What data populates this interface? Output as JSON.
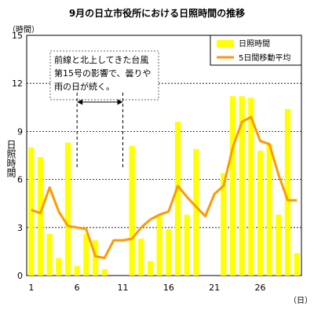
{
  "chart_data": {
    "type": "bar",
    "title": "9月の日立市役所における日照時間の推移",
    "ylabel_unit": "（時間）",
    "ylabel": "日照時間",
    "xlabel_unit": "（日）",
    "ylim": [
      0,
      15
    ],
    "yticks": [
      0,
      3,
      6,
      9,
      12,
      15
    ],
    "xtick_days": [
      1,
      6,
      11,
      16,
      21,
      26
    ],
    "x": [
      1,
      2,
      3,
      4,
      5,
      6,
      7,
      8,
      9,
      10,
      11,
      12,
      13,
      14,
      15,
      16,
      17,
      18,
      19,
      20,
      21,
      22,
      23,
      24,
      25,
      26,
      27,
      28,
      29,
      30
    ],
    "series": [
      {
        "name": "日照時間",
        "type": "bar",
        "color": "#ffff00",
        "values": [
          8.0,
          7.4,
          2.6,
          1.1,
          8.3,
          0.6,
          2.6,
          2.2,
          0.4,
          0.0,
          0.0,
          8.1,
          2.3,
          0.9,
          3.8,
          2.9,
          9.6,
          3.8,
          7.9,
          0.0,
          0.0,
          6.4,
          11.2,
          11.2,
          11.1,
          7.8,
          8.2,
          3.8,
          10.4,
          1.4
        ]
      },
      {
        "name": "5日間移動平均",
        "type": "line",
        "color": "#ff9900",
        "values": [
          4.1,
          3.9,
          5.5,
          4.0,
          3.1,
          3.0,
          2.9,
          1.2,
          1.1,
          2.2,
          2.2,
          2.3,
          3.0,
          3.5,
          3.8,
          4.0,
          5.6,
          4.9,
          4.3,
          3.7,
          5.1,
          5.6,
          8.0,
          9.6,
          9.9,
          8.4,
          8.2,
          6.3,
          4.7,
          4.7
        ]
      }
    ],
    "legend_position": "top-right",
    "grid": "horizontal dashed",
    "annotation": {
      "lines": [
        "前線と北上してきた台風",
        "第15号の影響で、曇りや",
        "雨の日が続く。"
      ],
      "span_days": [
        6,
        11
      ]
    }
  }
}
